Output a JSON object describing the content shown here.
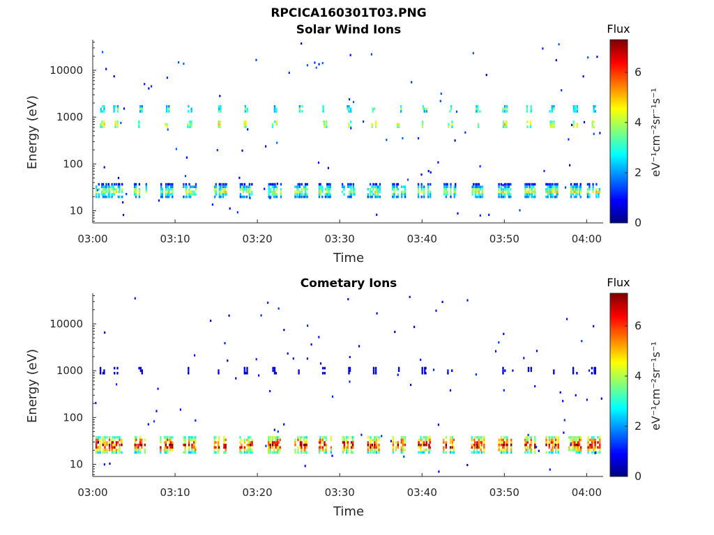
{
  "figure_title": "RPCICA160301T03.PNG",
  "colors": {
    "background": "#ffffff",
    "axis": "#262626",
    "colormap": [
      "#00007f",
      "#0000ff",
      "#007fff",
      "#00ffff",
      "#7fff7f",
      "#ffff00",
      "#ff7f00",
      "#ff0000",
      "#7f0000"
    ]
  },
  "chart_data": [
    {
      "type": "heatmap",
      "title": "Solar Wind Ions",
      "xlabel": "Time",
      "ylabel": "Energy (eV)",
      "y_scale": "log",
      "x_ticks": [
        "03:00",
        "03:10",
        "03:20",
        "03:30",
        "03:40",
        "03:50",
        "04:00"
      ],
      "x_range_minutes": [
        0,
        62
      ],
      "y_ticks": [
        10,
        100,
        1000,
        10000
      ],
      "y_tick_labels": [
        "10",
        "100",
        "1000",
        "10000"
      ],
      "ylim": [
        5.5,
        45000
      ],
      "colorbar": {
        "title": "Flux",
        "label": "eV⁻¹cm⁻²sr⁻¹s⁻¹",
        "ticks": [
          0,
          2,
          4,
          6
        ],
        "range": [
          0,
          7.3
        ]
      },
      "bursts_minutes": [
        1.2,
        2.8,
        5.8,
        9.0,
        11.8,
        15.5,
        18.6,
        22.1,
        25.3,
        28.2,
        31.1,
        34.2,
        37.2,
        40.3,
        43.4,
        46.8,
        50.1,
        53.0,
        55.8,
        58.6,
        60.9
      ],
      "bands": [
        {
          "name": "low",
          "center_eV": 27,
          "rows": 6,
          "levels": [
            1.2,
            2.4,
            3.4,
            4.2,
            3.0,
            2.0
          ]
        },
        {
          "name": "mid",
          "center_eV": 700,
          "rows": 3,
          "levels": [
            3.8,
            4.4,
            3.6
          ]
        },
        {
          "name": "high",
          "center_eV": 1500,
          "rows": 3,
          "levels": [
            2.6,
            3.2,
            2.8
          ]
        }
      ],
      "scatter_flux": 1.0
    },
    {
      "type": "heatmap",
      "title": "Cometary Ions",
      "xlabel": "Time",
      "ylabel": "Energy (eV)",
      "y_scale": "log",
      "x_ticks": [
        "03:00",
        "03:10",
        "03:20",
        "03:30",
        "03:40",
        "03:50",
        "04:00"
      ],
      "x_range_minutes": [
        0,
        62
      ],
      "y_ticks": [
        10,
        100,
        1000,
        10000
      ],
      "y_tick_labels": [
        "10",
        "100",
        "1000",
        "10000"
      ],
      "ylim": [
        5.5,
        45000
      ],
      "colorbar": {
        "title": "Flux",
        "label": "eV⁻¹cm⁻²sr⁻¹s⁻¹",
        "ticks": [
          0,
          2,
          4,
          6
        ],
        "range": [
          0,
          7.3
        ]
      },
      "bursts_minutes": [
        1.2,
        2.8,
        5.8,
        9.0,
        11.8,
        15.5,
        18.6,
        22.1,
        25.3,
        28.2,
        31.1,
        34.2,
        37.2,
        40.3,
        43.4,
        46.8,
        50.1,
        53.0,
        55.8,
        58.6,
        60.9
      ],
      "bands": [
        {
          "name": "low",
          "center_eV": 26,
          "rows": 7,
          "levels": [
            3.6,
            4.8,
            5.6,
            6.4,
            5.8,
            4.6,
            3.2
          ]
        },
        {
          "name": "mid",
          "center_eV": 1000,
          "rows": 3,
          "levels": [
            0.6,
            0.9,
            0.6
          ]
        }
      ],
      "scatter_flux": 0.8
    }
  ]
}
